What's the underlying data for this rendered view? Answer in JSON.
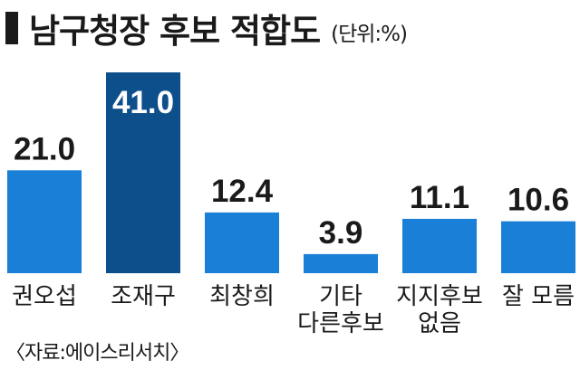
{
  "title": "남구청장 후보 적합도",
  "unit": "(단위:%)",
  "source": "〈자료:에이스리서치〉",
  "colors": {
    "bar": "#1a7fd6",
    "bar_highlight": "#0d4f8b"
  },
  "chart_data": {
    "type": "bar",
    "title": "남구청장 후보 적합도",
    "unit": "%",
    "categories": [
      "권오섭",
      "조재구",
      "최창희",
      "기타 다른후보",
      "지지후보 없음",
      "잘 모름"
    ],
    "category_lines": [
      [
        "권오섭"
      ],
      [
        "조재구"
      ],
      [
        "최창희"
      ],
      [
        "기타",
        "다른후보"
      ],
      [
        "지지후보",
        "없음"
      ],
      [
        "잘 모름"
      ]
    ],
    "values": [
      21.0,
      41.0,
      12.4,
      3.9,
      11.1,
      10.6
    ],
    "value_labels": [
      "21.0",
      "41.0",
      "12.4",
      "3.9",
      "11.1",
      "10.6"
    ],
    "highlight_index": 1,
    "ylim": [
      0,
      41
    ],
    "grid": false,
    "legend": "none"
  }
}
